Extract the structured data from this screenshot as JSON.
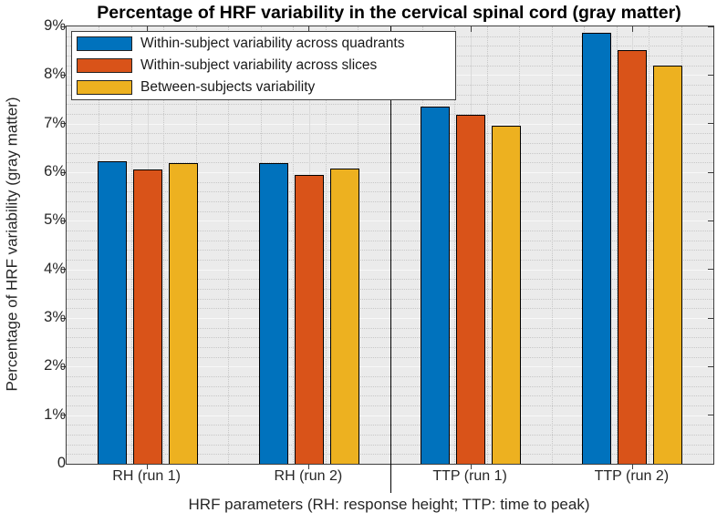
{
  "figure_title": "Percentage of HRF variability in the cervical spinal cord (gray matter)",
  "chart_data": {
    "type": "bar",
    "title": "Percentage of HRF variability in the cervical spinal cord (gray matter)",
    "xlabel": "HRF parameters (RH: response height; TTP: time to peak)",
    "ylabel": "Percentage of HRF variability (gray matter)",
    "categories": [
      "RH (run 1)",
      "RH (run 2)",
      "TTP (run 1)",
      "TTP (run 2)"
    ],
    "series": [
      {
        "name": "Within-subject variability across quadrants",
        "color": "#0072BD",
        "values": [
          6.23,
          6.19,
          7.35,
          8.86
        ]
      },
      {
        "name": "Within-subject variability across slices",
        "color": "#D95319",
        "values": [
          6.06,
          5.95,
          7.18,
          8.51
        ]
      },
      {
        "name": "Between-subjects variability",
        "color": "#EDB120",
        "values": [
          6.18,
          6.08,
          6.95,
          8.19
        ]
      }
    ],
    "ylim": [
      0,
      9
    ],
    "ytick_values": [
      0,
      1,
      2,
      3,
      4,
      5,
      6,
      7,
      8,
      9
    ],
    "ytick_labels": [
      "0",
      "1%",
      "2%",
      "3%",
      "4%",
      "5%",
      "6%",
      "7%",
      "8%",
      "9%"
    ],
    "y_minor_step": 0.2,
    "grid": "major solid + minor dotted, horizontal and vertical",
    "legend_position": "top-left inside plot, white box",
    "divider_after_category_index": 1
  },
  "colors": {
    "plot_background": "#ebebeb",
    "figure_background": "#ffffff",
    "axis_line": "#3f3f3f",
    "bar_edge": "#000000",
    "divider_line": "#000000",
    "title_text": "#000000",
    "label_text": "#262626"
  }
}
